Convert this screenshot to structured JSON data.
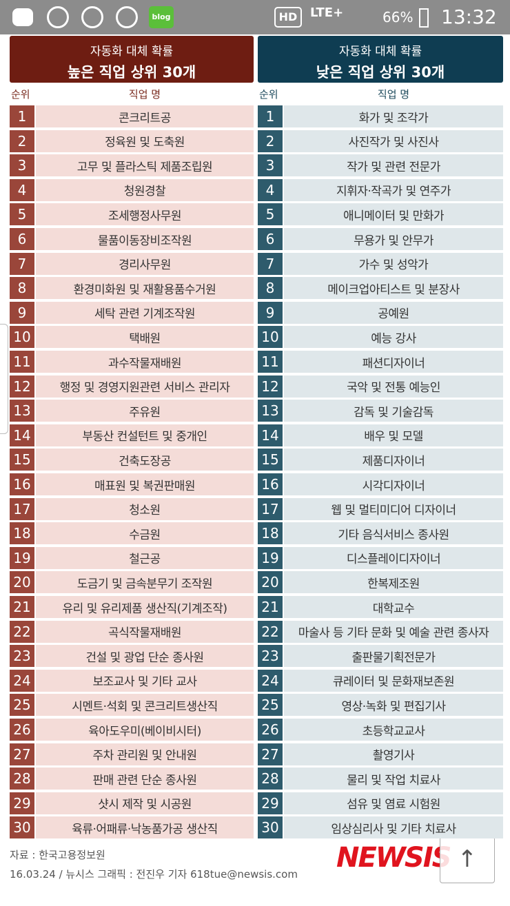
{
  "status_bar": {
    "blog": "blog",
    "hd": "HD",
    "network": "LTE+",
    "battery": "66%",
    "time": "13:32"
  },
  "tables": [
    {
      "title_line1": "자동화 대체 확률",
      "title_line2": "높은 직업 상위 30개",
      "col_rank": "순위",
      "col_job": "직업 명",
      "rows": [
        [
          1,
          "콘크리트공"
        ],
        [
          2,
          "정육원 및 도축원"
        ],
        [
          3,
          "고무 및 플라스틱 제품조립원"
        ],
        [
          4,
          "청원경찰"
        ],
        [
          5,
          "조세행정사무원"
        ],
        [
          6,
          "물품이동장비조작원"
        ],
        [
          7,
          "경리사무원"
        ],
        [
          8,
          "환경미화원 및 재활용품수거원"
        ],
        [
          9,
          "세탁 관련 기계조작원"
        ],
        [
          10,
          "택배원"
        ],
        [
          11,
          "과수작물재배원"
        ],
        [
          12,
          "행정 및 경영지원관련 서비스 관리자"
        ],
        [
          13,
          "주유원"
        ],
        [
          14,
          "부동산 컨설턴트 및 중개인"
        ],
        [
          15,
          "건축도장공"
        ],
        [
          16,
          "매표원 및 복권판매원"
        ],
        [
          17,
          "청소원"
        ],
        [
          18,
          "수금원"
        ],
        [
          19,
          "철근공"
        ],
        [
          20,
          "도금기 및 금속분무기 조작원"
        ],
        [
          21,
          "유리 및 유리제품 생산직(기계조작)"
        ],
        [
          22,
          "곡식작물재배원"
        ],
        [
          23,
          "건설 및 광업 단순 종사원"
        ],
        [
          24,
          "보조교사 및 기타 교사"
        ],
        [
          25,
          "시멘트·석회 및 콘크리트생산직"
        ],
        [
          26,
          "육아도우미(베이비시터)"
        ],
        [
          27,
          "주차 관리원 및 안내원"
        ],
        [
          28,
          "판매 관련 단순 종사원"
        ],
        [
          29,
          "샷시 제작 및 시공원"
        ],
        [
          30,
          "육류·어패류·낙농품가공 생산직"
        ]
      ]
    },
    {
      "title_line1": "자동화 대체 확률",
      "title_line2": "낮은 직업 상위 30개",
      "col_rank": "순위",
      "col_job": "직업 명",
      "rows": [
        [
          1,
          "화가 및 조각가"
        ],
        [
          2,
          "사진작가 및 사진사"
        ],
        [
          3,
          "작가 및 관련 전문가"
        ],
        [
          4,
          "지휘자·작곡가 및 연주가"
        ],
        [
          5,
          "애니메이터 및 만화가"
        ],
        [
          6,
          "무용가 및 안무가"
        ],
        [
          7,
          "가수 및 성악가"
        ],
        [
          8,
          "메이크업아티스트 및 분장사"
        ],
        [
          9,
          "공예원"
        ],
        [
          10,
          "예능 강사"
        ],
        [
          11,
          "패션디자이너"
        ],
        [
          12,
          "국악 및 전통 예능인"
        ],
        [
          13,
          "감독 및 기술감독"
        ],
        [
          14,
          "배우 및 모델"
        ],
        [
          15,
          "제품디자이너"
        ],
        [
          16,
          "시각디자이너"
        ],
        [
          17,
          "웹 및 멀티미디어 디자이너"
        ],
        [
          18,
          "기타 음식서비스 종사원"
        ],
        [
          19,
          "디스플레이디자이너"
        ],
        [
          20,
          "한복제조원"
        ],
        [
          21,
          "대학교수"
        ],
        [
          22,
          "마술사 등 기타 문화 및 예술 관련 종사자"
        ],
        [
          23,
          "출판물기획전문가"
        ],
        [
          24,
          "큐레이터 및 문화재보존원"
        ],
        [
          25,
          "영상·녹화 및 편집기사"
        ],
        [
          26,
          "초등학교교사"
        ],
        [
          27,
          "촬영기사"
        ],
        [
          28,
          "물리 및 작업 치료사"
        ],
        [
          29,
          "섬유 및 염료 시험원"
        ],
        [
          30,
          "임상심리사 및 기타 치료사"
        ]
      ]
    }
  ],
  "footer": {
    "source": "자료 : 한국고용정보원",
    "credit": "16.03.24 / 뉴시스 그래픽 : 전진우 기자 618tue@newsis.com",
    "logo": "NEWSIS"
  }
}
